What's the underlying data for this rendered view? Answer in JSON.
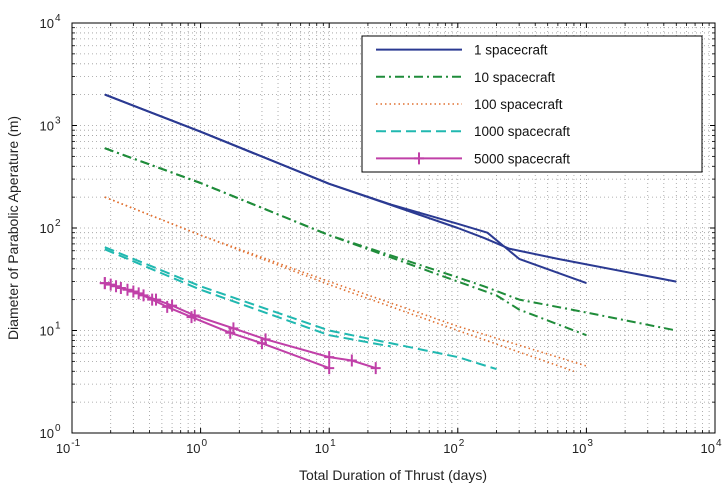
{
  "chart_data": {
    "type": "line",
    "title": "",
    "xlabel": "Total Duration of Thrust (days)",
    "ylabel": "Diameter of Parabolic Aperature (m)",
    "x_scale": "log",
    "y_scale": "log",
    "xlim": [
      0.1,
      10000
    ],
    "ylim": [
      1,
      10000
    ],
    "x_ticks": [
      {
        "value": 0.1,
        "base": "10",
        "exp": "-1"
      },
      {
        "value": 1,
        "base": "10",
        "exp": "0"
      },
      {
        "value": 10,
        "base": "10",
        "exp": "1"
      },
      {
        "value": 100,
        "base": "10",
        "exp": "2"
      },
      {
        "value": 1000,
        "base": "10",
        "exp": "3"
      },
      {
        "value": 10000,
        "base": "10",
        "exp": "4"
      }
    ],
    "y_ticks": [
      {
        "value": 1,
        "base": "10",
        "exp": "0"
      },
      {
        "value": 10,
        "base": "10",
        "exp": "1"
      },
      {
        "value": 100,
        "base": "10",
        "exp": "2"
      },
      {
        "value": 1000,
        "base": "10",
        "exp": "3"
      },
      {
        "value": 10000,
        "base": "10",
        "exp": "4"
      }
    ],
    "grid": true,
    "legend_position": "top-right",
    "series": [
      {
        "name": "1 spacecraft",
        "color": "#2b3a92",
        "style": "solid",
        "lines": [
          [
            [
              0.18,
              2000
            ],
            [
              1,
              870
            ],
            [
              10,
              270
            ],
            [
              30,
              170
            ],
            [
              100,
              110
            ],
            [
              170,
              90
            ],
            [
              300,
              50
            ],
            [
              1000,
              29
            ]
          ],
          [
            [
              0.18,
              2000
            ],
            [
              1,
              870
            ],
            [
              10,
              270
            ],
            [
              100,
              100
            ],
            [
              160,
              80
            ],
            [
              250,
              63
            ],
            [
              600,
              50
            ],
            [
              5000,
              30
            ]
          ]
        ]
      },
      {
        "name": "10 spacecraft",
        "color": "#1f8c3a",
        "style": "dashdot",
        "lines": [
          [
            [
              0.18,
              600
            ],
            [
              1,
              275
            ],
            [
              10,
              85
            ],
            [
              100,
              33
            ],
            [
              160,
              27
            ],
            [
              300,
              20
            ],
            [
              1000,
              15
            ],
            [
              5000,
              10
            ]
          ],
          [
            [
              0.18,
              600
            ],
            [
              1,
              275
            ],
            [
              10,
              85
            ],
            [
              100,
              30
            ],
            [
              200,
              22
            ],
            [
              300,
              16
            ],
            [
              1000,
              9
            ]
          ]
        ]
      },
      {
        "name": "100 spacecraft",
        "color": "#e07030",
        "style": "dotted",
        "lines": [
          [
            [
              0.18,
              200
            ],
            [
              1,
              85
            ],
            [
              10,
              30
            ],
            [
              100,
              11
            ],
            [
              1000,
              4.5
            ]
          ],
          [
            [
              0.18,
              200
            ],
            [
              1,
              85
            ],
            [
              10,
              28
            ],
            [
              100,
              10
            ],
            [
              800,
              4
            ]
          ]
        ]
      },
      {
        "name": "1000 spacecraft",
        "color": "#20b8b0",
        "style": "dashed",
        "lines": [
          [
            [
              0.18,
              65
            ],
            [
              1,
              27
            ],
            [
              10,
              10
            ],
            [
              100,
              5.5
            ],
            [
              200,
              4.2
            ]
          ],
          [
            [
              0.18,
              62
            ],
            [
              1,
              25
            ],
            [
              10,
              9
            ],
            [
              30,
              7
            ]
          ]
        ]
      },
      {
        "name": "5000 spacecraft",
        "color": "#c040a8",
        "style": "solid-plus",
        "lines": [
          [
            [
              0.18,
              29
            ],
            [
              0.2,
              28
            ],
            [
              0.24,
              26
            ],
            [
              0.3,
              24
            ],
            [
              0.36,
              22
            ],
            [
              0.45,
              20
            ],
            [
              0.6,
              17.5
            ],
            [
              0.9,
              14
            ],
            [
              1.8,
              10.5
            ],
            [
              3.2,
              8.2
            ],
            [
              10,
              5.5
            ],
            [
              15,
              5.1
            ],
            [
              23,
              4.3
            ]
          ],
          [
            [
              0.18,
              29
            ],
            [
              0.22,
              27
            ],
            [
              0.27,
              25
            ],
            [
              0.33,
              23
            ],
            [
              0.42,
              20
            ],
            [
              0.55,
              17
            ],
            [
              0.85,
              13.5
            ],
            [
              1.7,
              9.5
            ],
            [
              3,
              7.5
            ],
            [
              10,
              4.3
            ]
          ]
        ]
      }
    ]
  }
}
